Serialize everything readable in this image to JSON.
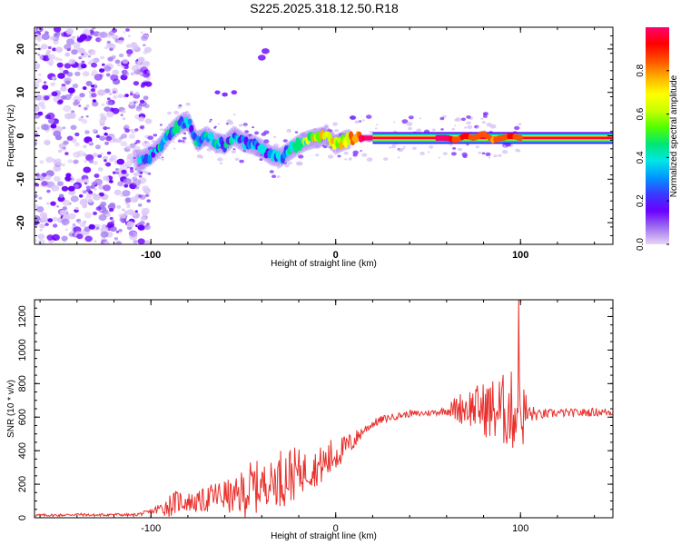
{
  "title": "S225.2025.318.12.50.R18",
  "chart_data": [
    {
      "type": "heatmap",
      "name": "spectrogram",
      "title": "S225.2025.318.12.50.R18",
      "xlabel": "Height of straight line (km)",
      "ylabel": "Frequency (Hz)",
      "xlim": [
        -163,
        150
      ],
      "ylim": [
        -25,
        25
      ],
      "xticks": [
        -100,
        0,
        100
      ],
      "yticks": [
        -20,
        -10,
        0,
        10,
        20
      ],
      "xtick_labels": [
        "-100",
        "0",
        "100"
      ],
      "ytick_labels": [
        "-20",
        "-10",
        "0",
        "10",
        "20"
      ],
      "colorbar": {
        "label": "Normalized spectral amplitude",
        "range": [
          0,
          1
        ],
        "ticks": [
          0.0,
          0.2,
          0.4,
          0.6,
          0.8
        ],
        "tick_labels": [
          "0.0",
          "0.2",
          "0.4",
          "0.6",
          "0.8"
        ],
        "colormap": [
          "#e8d6f7",
          "#a070f0",
          "#6a00ff",
          "#3a3aff",
          "#0096ff",
          "#00e6e6",
          "#00e676",
          "#50ff00",
          "#c8ff00",
          "#ffff00",
          "#ffb000",
          "#ff5000",
          "#ff0000",
          "#ff0070"
        ]
      },
      "ridge": {
        "x": [
          -105,
          -100,
          -95,
          -90,
          -85,
          -80,
          -75,
          -70,
          -65,
          -60,
          -55,
          -50,
          -45,
          -40,
          -35,
          -30,
          -25,
          -20,
          -15,
          -10,
          -5,
          0,
          5,
          10,
          15,
          20,
          40,
          60,
          65,
          70,
          75,
          80,
          85,
          90,
          95,
          100,
          110,
          120,
          150
        ],
        "y": [
          -5.5,
          -4.5,
          -2.5,
          0.5,
          2.5,
          3.5,
          -1.5,
          0,
          -1.5,
          -2,
          0,
          -1.5,
          -2,
          -3,
          -4.5,
          -5,
          -3.5,
          -2,
          -1,
          -0.5,
          0,
          -2,
          -1,
          -0.5,
          -0.5,
          -0.5,
          -0.5,
          -0.5,
          -1,
          0,
          -0.5,
          0.5,
          -1,
          -0.5,
          0,
          -0.5,
          -0.5,
          -0.5,
          -0.5
        ],
        "amplitude": [
          0.3,
          0.3,
          0.32,
          0.35,
          0.35,
          0.3,
          0.35,
          0.32,
          0.35,
          0.3,
          0.3,
          0.28,
          0.3,
          0.3,
          0.32,
          0.32,
          0.38,
          0.45,
          0.55,
          0.65,
          0.75,
          0.6,
          0.7,
          0.85,
          0.95,
          1.0,
          1.0,
          1.0,
          0.85,
          0.9,
          0.85,
          0.85,
          0.8,
          0.85,
          0.9,
          0.85,
          0.85,
          0.85,
          0.85
        ]
      }
    },
    {
      "type": "line",
      "name": "snr",
      "xlabel": "Height of straight line (km)",
      "ylabel": "SNR (10 * v/v)",
      "xlim": [
        -163,
        150
      ],
      "ylim": [
        0,
        1300
      ],
      "xticks": [
        -100,
        0,
        100
      ],
      "yticks": [
        0,
        200,
        400,
        600,
        800,
        1000,
        1200
      ],
      "xtick_labels": [
        "-100",
        "0",
        "100"
      ],
      "ytick_labels": [
        "0",
        "200",
        "400",
        "600",
        "800",
        "1000",
        "1200"
      ],
      "color": "#e8302c",
      "x": [
        -163,
        -150,
        -140,
        -130,
        -120,
        -110,
        -100,
        -95,
        -90,
        -85,
        -80,
        -75,
        -70,
        -65,
        -60,
        -55,
        -50,
        -45,
        -40,
        -35,
        -30,
        -25,
        -20,
        -15,
        -10,
        -5,
        0,
        5,
        10,
        15,
        20,
        25,
        30,
        35,
        40,
        45,
        50,
        55,
        60,
        65,
        70,
        75,
        80,
        85,
        90,
        95,
        100,
        105,
        110,
        120,
        130,
        140,
        150
      ],
      "y": [
        15,
        15,
        20,
        15,
        20,
        15,
        35,
        55,
        75,
        100,
        95,
        90,
        110,
        130,
        135,
        115,
        150,
        175,
        195,
        215,
        240,
        255,
        270,
        285,
        300,
        330,
        380,
        420,
        460,
        520,
        560,
        585,
        600,
        610,
        620,
        620,
        625,
        630,
        640,
        650,
        660,
        660,
        650,
        640,
        640,
        640,
        620,
        620,
        615,
        625,
        625,
        630,
        630
      ],
      "amplitude": [
        8,
        8,
        8,
        8,
        8,
        8,
        15,
        40,
        70,
        70,
        60,
        60,
        80,
        90,
        100,
        100,
        150,
        180,
        130,
        120,
        180,
        180,
        140,
        110,
        110,
        130,
        110,
        70,
        60,
        30,
        25,
        25,
        20,
        20,
        20,
        20,
        20,
        20,
        25,
        80,
        110,
        130,
        160,
        200,
        220,
        240,
        260,
        60,
        30,
        25,
        25,
        25,
        25
      ],
      "spike": {
        "x": 99,
        "y": 1300
      }
    }
  ]
}
